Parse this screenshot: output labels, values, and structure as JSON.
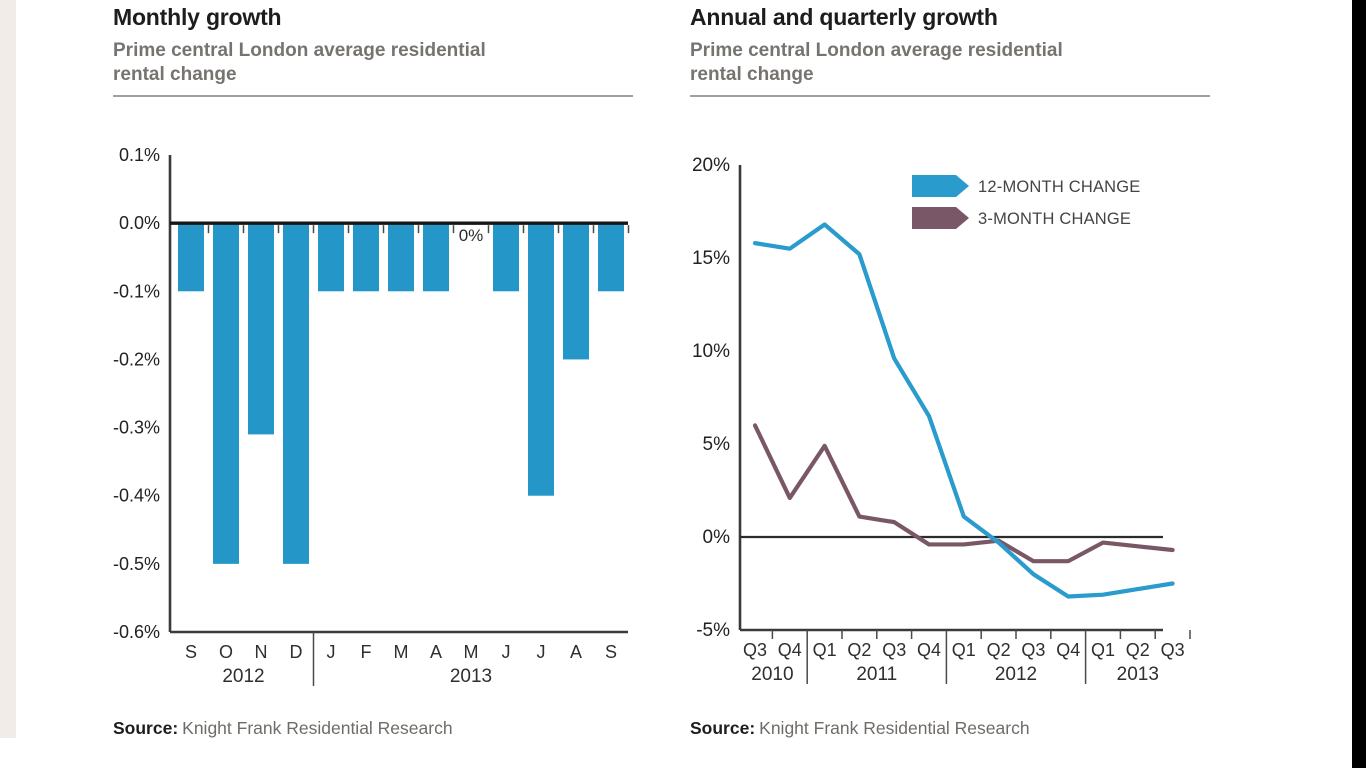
{
  "page": {
    "left_margin_color": "#f1ece8",
    "right_screen_edge_color": "#000000",
    "accent_blue": "#2a9bcd",
    "accent_mauve": "#7a5766"
  },
  "chart_data": [
    {
      "type": "bar",
      "title": "Monthly growth",
      "subtitle_line1": "Prime central London average residential",
      "subtitle_line2": "rental change",
      "categories": [
        "S",
        "O",
        "N",
        "D",
        "J",
        "F",
        "M",
        "A",
        "M",
        "J",
        "J",
        "A",
        "S"
      ],
      "values": [
        -0.1,
        -0.5,
        -0.31,
        -0.5,
        -0.1,
        -0.1,
        -0.1,
        -0.1,
        0,
        -0.1,
        -0.4,
        -0.2,
        -0.1
      ],
      "year_groups": [
        {
          "label": "2012",
          "span": 4
        },
        {
          "label": "2013",
          "span": 9
        }
      ],
      "y_ticks": [
        "0.1%",
        "0.0%",
        "-0.1%",
        "-0.2%",
        "-0.3%",
        "-0.4%",
        "-0.5%",
        "-0.6%"
      ],
      "ylim": [
        -0.6,
        0.1
      ],
      "grid": false,
      "bar_color": "#2496c8",
      "axis_color": "#3a3a3a",
      "annotation": {
        "text": "0%",
        "category_index": 8
      },
      "source_label": "Source:",
      "source_text": "Knight Frank Residential Research"
    },
    {
      "type": "line",
      "title": "Annual and quarterly growth",
      "subtitle_line1": "Prime central London average residential",
      "subtitle_line2": "rental change",
      "categories": [
        "Q3",
        "Q4",
        "Q1",
        "Q2",
        "Q3",
        "Q4",
        "Q1",
        "Q2",
        "Q3",
        "Q4",
        "Q1",
        "Q2",
        "Q3"
      ],
      "year_groups": [
        {
          "label": "2010",
          "span": 2
        },
        {
          "label": "2011",
          "span": 4
        },
        {
          "label": "2012",
          "span": 4
        },
        {
          "label": "2013",
          "span": 3
        }
      ],
      "y_ticks": [
        "20%",
        "15%",
        "10%",
        "5%",
        "0%",
        "-5%"
      ],
      "ylim": [
        -5,
        20
      ],
      "grid": false,
      "axis_color": "#3a3a3a",
      "legend_position": "top-right",
      "series": [
        {
          "name": "12-MONTH CHANGE",
          "color": "#2a9bcd",
          "values": [
            15.8,
            15.5,
            16.8,
            15.2,
            9.6,
            6.5,
            1.1,
            -0.3,
            -2.0,
            -3.2,
            -3.1,
            -2.8,
            -2.5
          ]
        },
        {
          "name": "3-MONTH CHANGE",
          "color": "#7a5766",
          "values": [
            6.0,
            2.1,
            4.9,
            1.1,
            0.8,
            -0.4,
            -0.4,
            -0.2,
            -1.3,
            -1.3,
            -0.3,
            -0.5,
            -0.7
          ]
        }
      ],
      "source_label": "Source:",
      "source_text": "Knight Frank Residential Research"
    }
  ]
}
